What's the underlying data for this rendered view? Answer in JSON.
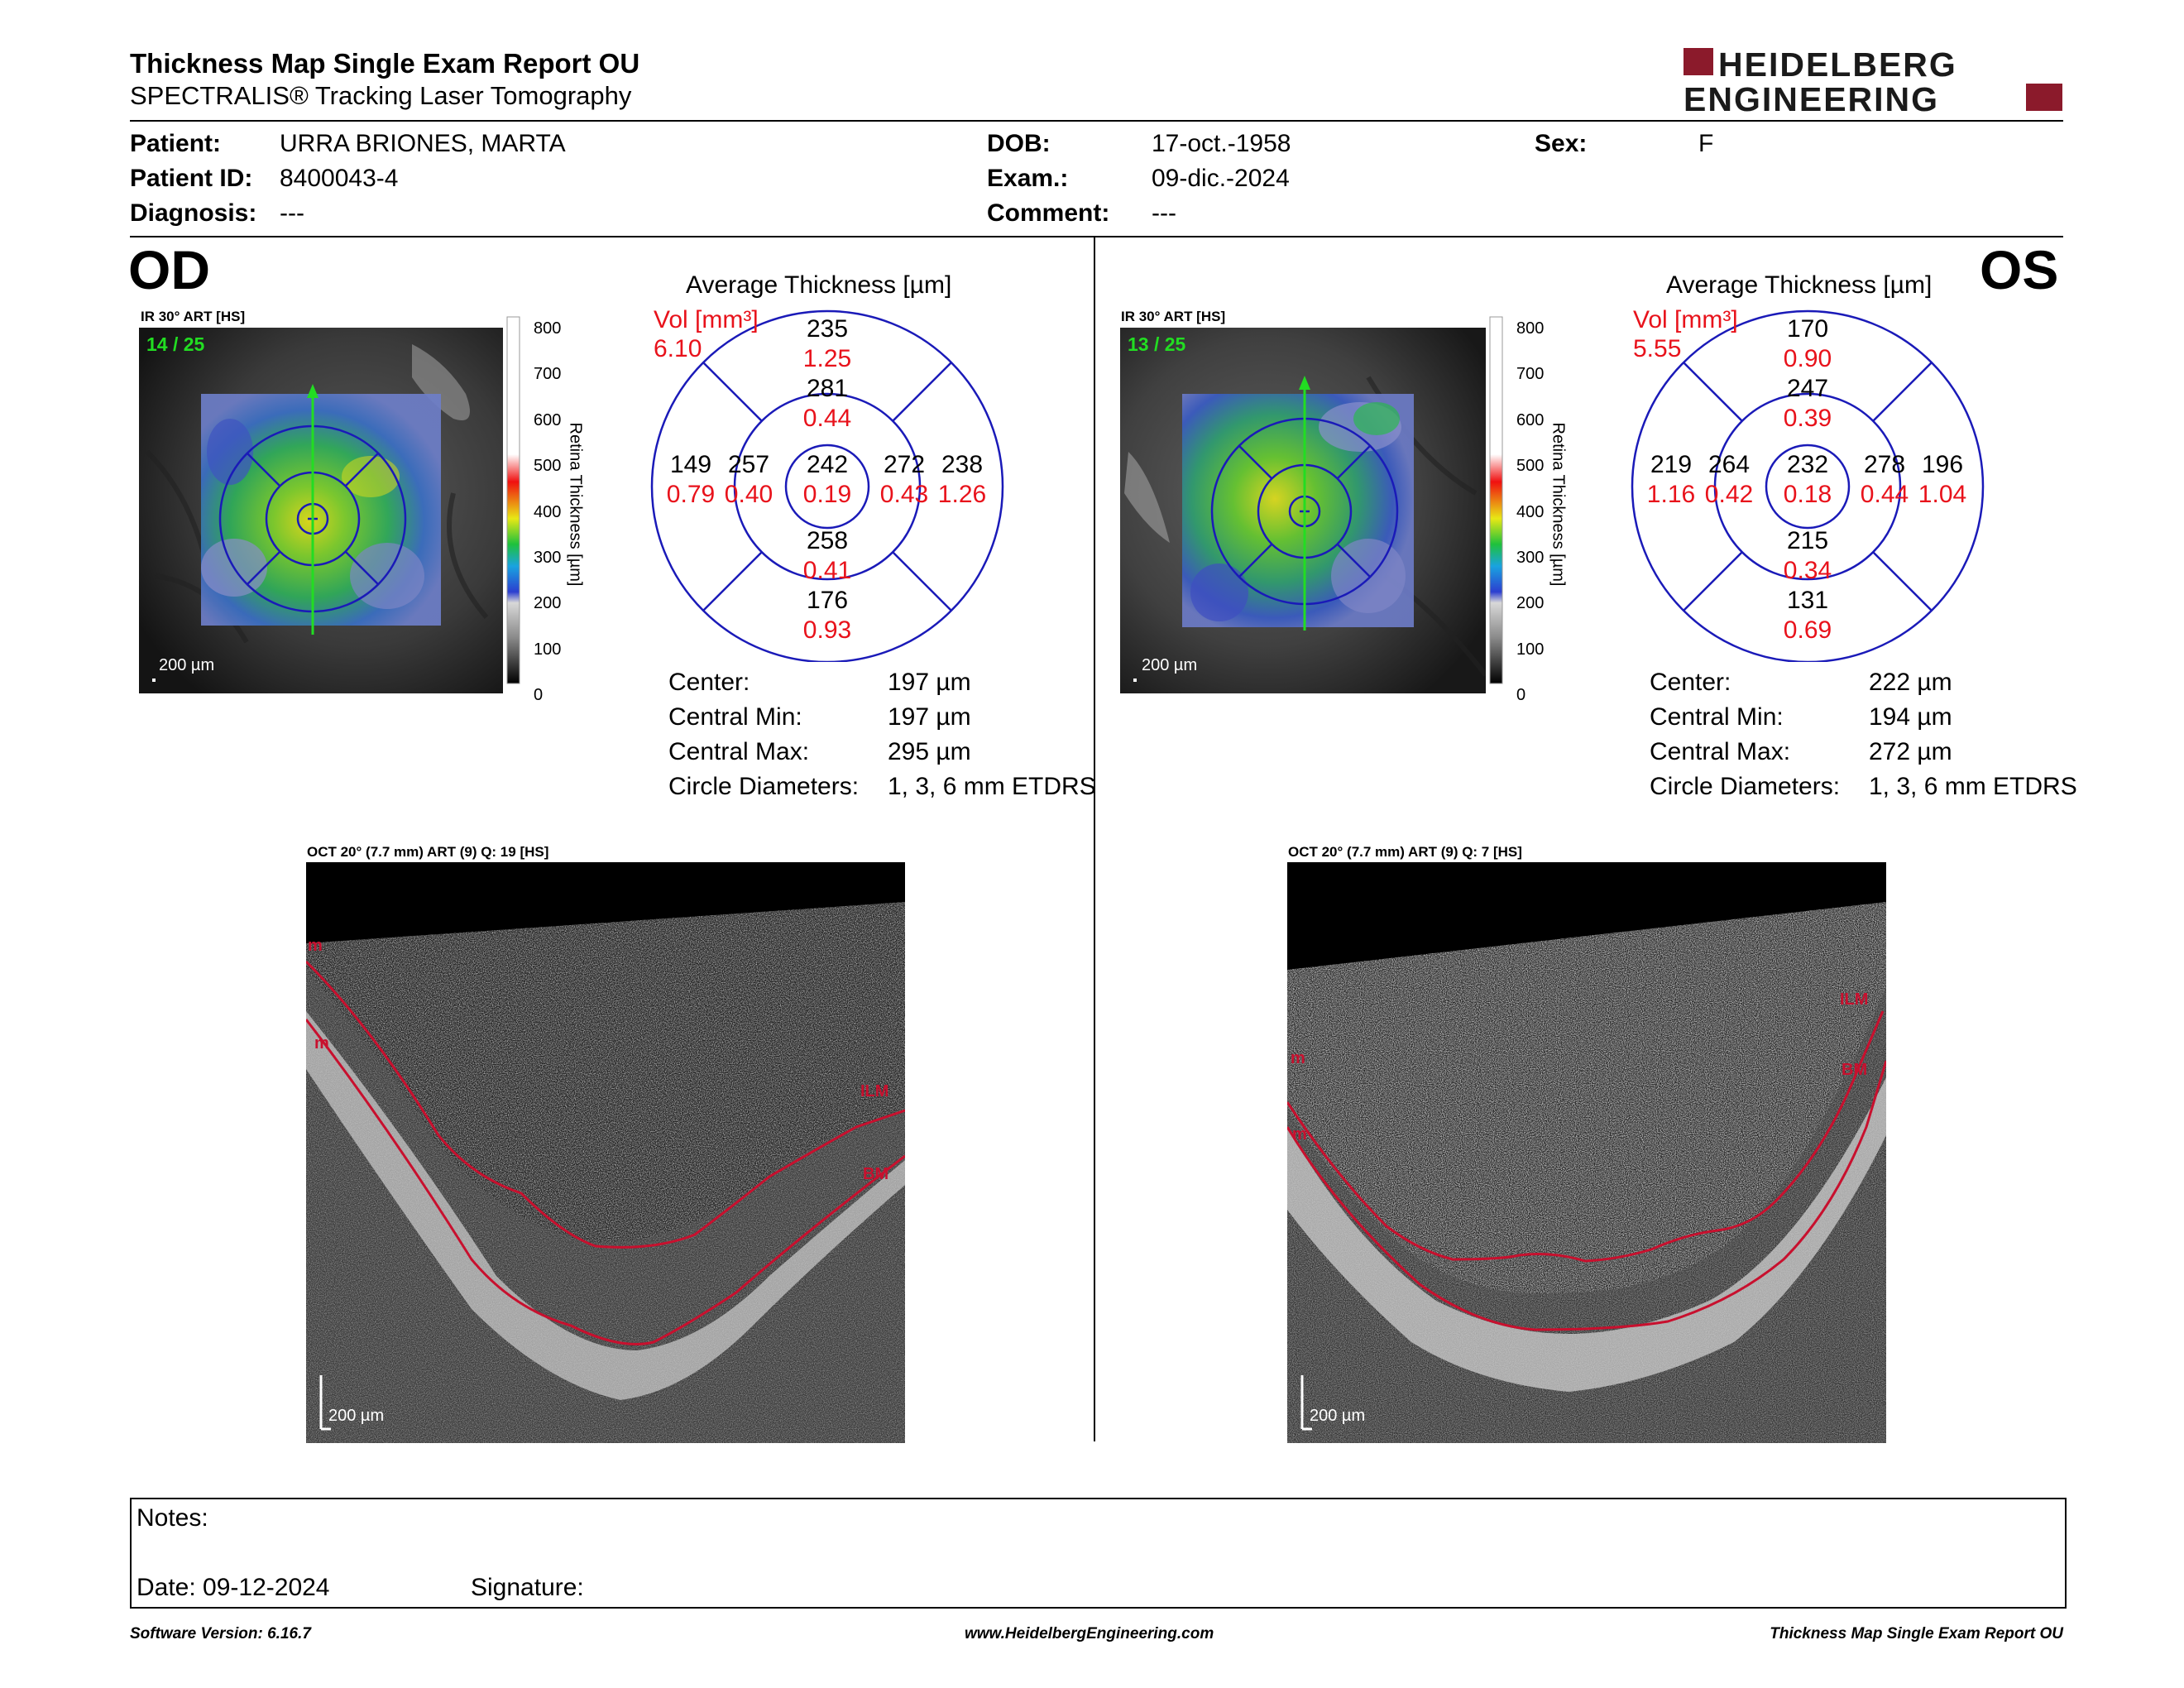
{
  "report": {
    "title": "Thickness Map Single Exam Report OU",
    "subtitle": "SPECTRALIS® Tracking Laser Tomography",
    "logo_line1": "HEIDELBERG",
    "logo_line2": "ENGINEERING"
  },
  "patient": {
    "patient_label": "Patient:",
    "patient_value": "URRA BRIONES, MARTA",
    "id_label": "Patient ID:",
    "id_value": "8400043-4",
    "diagnosis_label": "Diagnosis:",
    "diagnosis_value": "---",
    "dob_label": "DOB:",
    "dob_value": "17-oct.-1958",
    "exam_label": "Exam.:",
    "exam_value": "09-dic.-2024",
    "comment_label": "Comment:",
    "comment_value": "---",
    "sex_label": "Sex:",
    "sex_value": "F"
  },
  "colorbar": {
    "ticks": [
      "800",
      "700",
      "600",
      "500",
      "400",
      "300",
      "200",
      "100",
      "0"
    ],
    "label": "Retina Thickness [µm]"
  },
  "od": {
    "eye": "OD",
    "ir_title": "IR 30° ART [HS]",
    "frame": "14 / 25",
    "scale": "200 µm",
    "avg_title": "Average Thickness [µm]",
    "vol_label": "Vol [mm³]",
    "vol_value": "6.10",
    "grid": {
      "outer_top": "235",
      "outer_top_vol": "1.25",
      "inner_top": "281",
      "inner_top_vol": "0.44",
      "outer_left": "149",
      "outer_left_vol": "0.79",
      "inner_left": "257",
      "inner_left_vol": "0.40",
      "center": "242",
      "center_vol": "0.19",
      "inner_right": "272",
      "inner_right_vol": "0.43",
      "outer_right": "238",
      "outer_right_vol": "1.26",
      "inner_bottom": "258",
      "inner_bottom_vol": "0.41",
      "outer_bottom": "176",
      "outer_bottom_vol": "0.93"
    },
    "stats": {
      "center_label": "Center:",
      "center_value": "197 µm",
      "min_label": "Central Min:",
      "min_value": "197 µm",
      "max_label": "Central Max:",
      "max_value": "295 µm",
      "diam_label": "Circle Diameters:",
      "diam_value": "1, 3, 6 mm ETDRS"
    },
    "oct_title": "OCT 20° (7.7 mm) ART (9) Q: 19 [HS]",
    "oct_scale": "200 µm",
    "labels": {
      "ilm": "ILM",
      "bm": "BM",
      "m1": "m",
      "m2": "m"
    }
  },
  "os": {
    "eye": "OS",
    "ir_title": "IR 30° ART [HS]",
    "frame": "13 / 25",
    "scale": "200 µm",
    "avg_title": "Average Thickness [µm]",
    "vol_label": "Vol [mm³]",
    "vol_value": "5.55",
    "grid": {
      "outer_top": "170",
      "outer_top_vol": "0.90",
      "inner_top": "247",
      "inner_top_vol": "0.39",
      "outer_left": "219",
      "outer_left_vol": "1.16",
      "inner_left": "264",
      "inner_left_vol": "0.42",
      "center": "232",
      "center_vol": "0.18",
      "inner_right": "278",
      "inner_right_vol": "0.44",
      "outer_right": "196",
      "outer_right_vol": "1.04",
      "inner_bottom": "215",
      "inner_bottom_vol": "0.34",
      "outer_bottom": "131",
      "outer_bottom_vol": "0.69"
    },
    "stats": {
      "center_label": "Center:",
      "center_value": "222 µm",
      "min_label": "Central Min:",
      "min_value": "194 µm",
      "max_label": "Central Max:",
      "max_value": "272 µm",
      "diam_label": "Circle Diameters:",
      "diam_value": "1, 3, 6 mm ETDRS"
    },
    "oct_title": "OCT 20° (7.7 mm) ART (9) Q: 7 [HS]",
    "oct_scale": "200 µm",
    "labels": {
      "ilm": "ILM",
      "bm": "BM",
      "m1": "m",
      "m2": "m"
    }
  },
  "notes": {
    "notes_label": "Notes:",
    "date_label": "Date: 09-12-2024",
    "signature_label": "Signature:"
  },
  "footer": {
    "software": "Software Version: 6.16.7",
    "website": "www.HeidelbergEngineering.com",
    "report_name": "Thickness Map Single Exam Report OU"
  },
  "colors": {
    "grid_blue": "#1a1ab8",
    "volume_red": "#e8121b",
    "logo_red": "#8b1a2b",
    "segmentation_red": "#c8102e",
    "frame_green": "#22dd22"
  }
}
